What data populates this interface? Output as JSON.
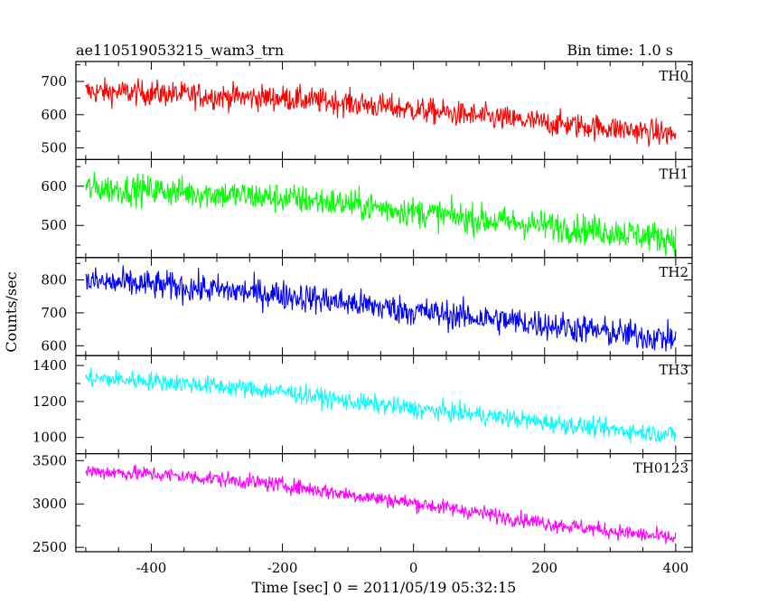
{
  "chart_data": {
    "type": "line",
    "title": "ae110519053215_wam3_trn",
    "subtitle": "Bin time: 1.0 s",
    "xlabel": "Time [sec] 0 = 2011/05/19 05:32:15",
    "ylabel": "Counts/sec",
    "xlim": [
      -515,
      425
    ],
    "x_ticks": [
      -400,
      -200,
      0,
      200,
      400
    ],
    "grid": false,
    "panels": [
      {
        "name": "TH0",
        "color": "#ff0000",
        "ylim": [
          465,
          760
        ],
        "y_ticks": [
          500,
          600,
          700
        ],
        "start": 670,
        "end": 540,
        "noise": 30,
        "x": [
          -500,
          -400,
          -300,
          -200,
          -100,
          0,
          100,
          200,
          300,
          400
        ],
        "values": [
          670,
          665,
          655,
          650,
          635,
          615,
          595,
          575,
          560,
          540
        ]
      },
      {
        "name": "TH1",
        "color": "#00ff00",
        "ylim": [
          418,
          668
        ],
        "y_ticks": [
          500,
          600
        ],
        "start": 595,
        "end": 465,
        "noise": 30,
        "x": [
          -500,
          -400,
          -300,
          -200,
          -100,
          0,
          100,
          200,
          300,
          400
        ],
        "values": [
          595,
          590,
          580,
          570,
          555,
          535,
          515,
          500,
          485,
          465
        ]
      },
      {
        "name": "TH2",
        "color": "#0000ff",
        "ylim": [
          570,
          868
        ],
        "y_ticks": [
          600,
          700,
          800
        ],
        "start": 795,
        "end": 620,
        "noise": 35,
        "x": [
          -500,
          -400,
          -300,
          -200,
          -100,
          0,
          100,
          200,
          300,
          400
        ],
        "values": [
          795,
          785,
          770,
          755,
          730,
          705,
          685,
          665,
          640,
          620
        ]
      },
      {
        "name": "TH3",
        "color": "#00ffff",
        "ylim": [
          910,
          1455
        ],
        "y_ticks": [
          1000,
          1200,
          1400
        ],
        "start": 1330,
        "end": 1015,
        "noise": 40,
        "x": [
          -500,
          -400,
          -300,
          -200,
          -100,
          0,
          100,
          200,
          300,
          400
        ],
        "values": [
          1330,
          1315,
          1285,
          1255,
          1200,
          1160,
          1125,
          1085,
          1045,
          1015
        ]
      },
      {
        "name": "TH0123",
        "color": "#ff00ff",
        "ylim": [
          2450,
          3580
        ],
        "y_ticks": [
          2500,
          3000,
          3500
        ],
        "start": 3380,
        "end": 2600,
        "noise": 70,
        "x": [
          -500,
          -400,
          -300,
          -200,
          -100,
          0,
          100,
          200,
          300,
          400
        ],
        "values": [
          3380,
          3345,
          3290,
          3220,
          3110,
          3010,
          2900,
          2780,
          2690,
          2600
        ]
      }
    ]
  }
}
